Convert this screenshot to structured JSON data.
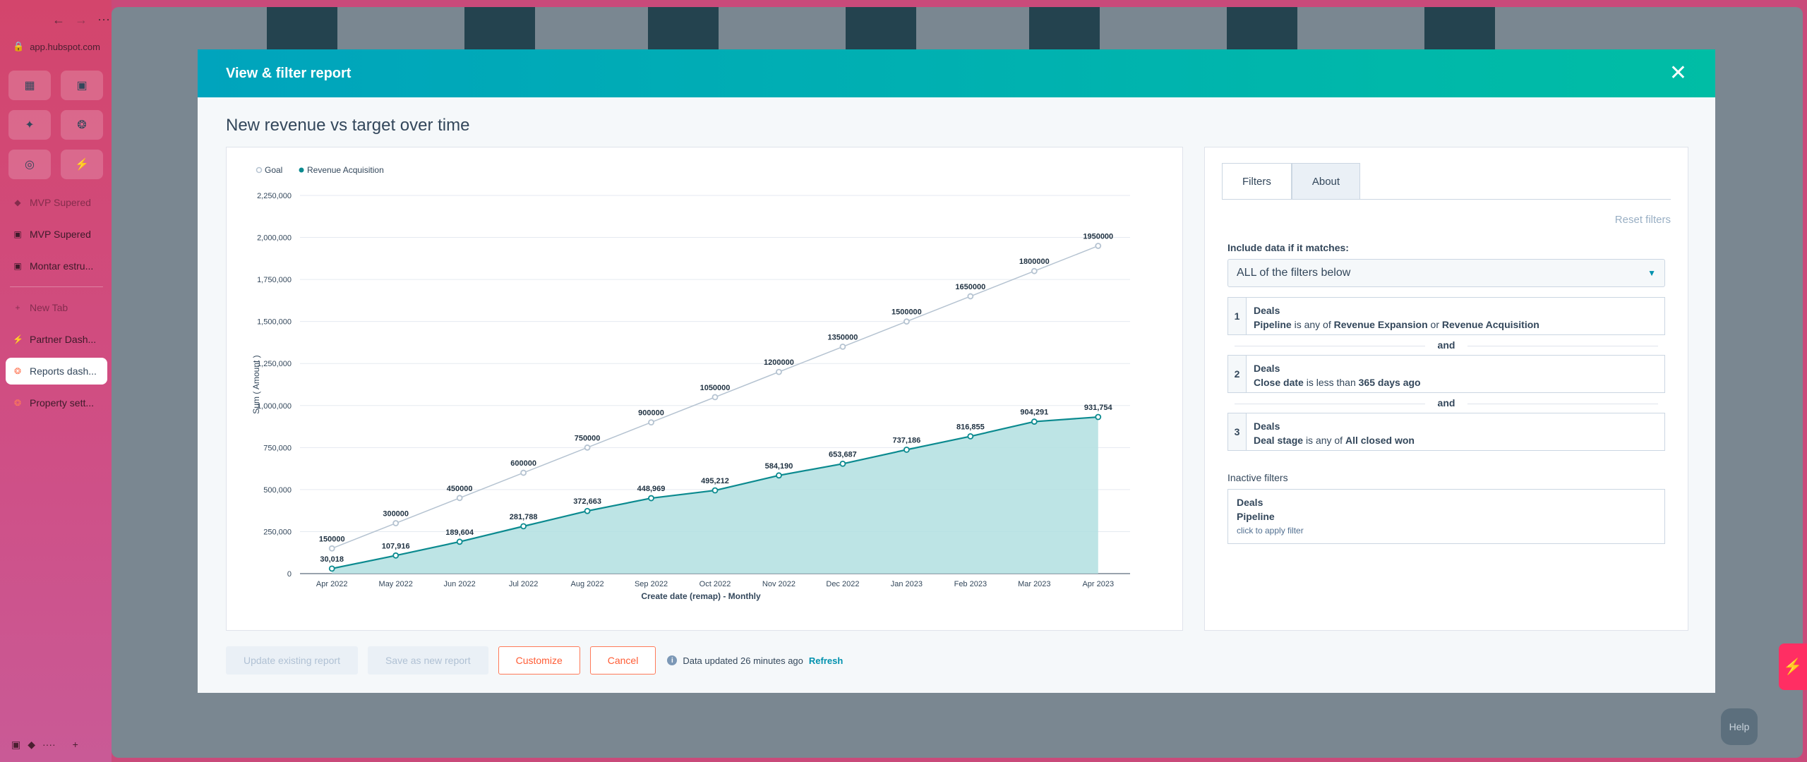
{
  "browser": {
    "url": "app.hubspot.com",
    "pinned": [
      "calendar-icon",
      "clipboard-icon",
      "slack-icon",
      "hubspot-icon",
      "target-icon",
      "bolt-icon"
    ],
    "tabs": [
      {
        "label": "MVP Supered",
        "style": "faded",
        "icon": "◆"
      },
      {
        "label": "MVP Supered",
        "style": "normal",
        "icon": "▣"
      },
      {
        "label": "Montar estru...",
        "style": "normal",
        "icon": "▣"
      },
      {
        "label": "New Tab",
        "style": "faded",
        "icon": "+"
      },
      {
        "label": "Partner Dash...",
        "style": "normal",
        "icon": "⚡"
      },
      {
        "label": "Reports dash...",
        "style": "active",
        "icon": "❂"
      },
      {
        "label": "Property sett...",
        "style": "normal",
        "icon": "❂"
      }
    ]
  },
  "modal": {
    "title": "View & filter report",
    "report_title": "New revenue vs target over time"
  },
  "chart_data": {
    "type": "line",
    "title": "New revenue vs target over time",
    "xlabel": "Create date (remap) - Monthly",
    "ylabel": "Sum ( Amount )",
    "ylim": [
      0,
      2250000
    ],
    "yticks": [
      0,
      250000,
      500000,
      750000,
      1000000,
      1250000,
      1500000,
      1750000,
      2000000,
      2250000
    ],
    "ytick_labels": [
      "0",
      "250,000",
      "500,000",
      "750,000",
      "1,000,000",
      "1,250,000",
      "1,500,000",
      "1,750,000",
      "2,000,000",
      "2,250,000"
    ],
    "categories": [
      "Apr 2022",
      "May 2022",
      "Jun 2022",
      "Jul 2022",
      "Aug 2022",
      "Sep 2022",
      "Oct 2022",
      "Nov 2022",
      "Dec 2022",
      "Jan 2023",
      "Feb 2023",
      "Mar 2023",
      "Apr 2023"
    ],
    "legend": [
      "Goal",
      "Revenue Acquisition"
    ],
    "series": [
      {
        "name": "Goal",
        "color": "#b5c3d1",
        "values": [
          150000,
          300000,
          450000,
          600000,
          750000,
          900000,
          1050000,
          1200000,
          1350000,
          1500000,
          1650000,
          1800000,
          1950000
        ],
        "labels": [
          "150000",
          "300000",
          "450000",
          "600000",
          "750000",
          "900000",
          "1050000",
          "1200000",
          "1350000",
          "1500000",
          "1650000",
          "1800000",
          "1950000"
        ]
      },
      {
        "name": "Revenue Acquisition",
        "color": "#0b8a8f",
        "area": "#b2dfe0",
        "values": [
          30018,
          107916,
          189604,
          281788,
          372663,
          448969,
          495212,
          584190,
          653687,
          737186,
          816855,
          904291,
          931754
        ],
        "labels": [
          "30,018",
          "107,916",
          "189,604",
          "281,788",
          "372,663",
          "448,969",
          "495,212",
          "584,190",
          "653,687",
          "737,186",
          "816,855",
          "904,291",
          "931,754"
        ]
      }
    ]
  },
  "filters": {
    "tabs": [
      "Filters",
      "About"
    ],
    "reset": "Reset filters",
    "include_label": "Include data if it matches:",
    "match_mode": "ALL of the filters below",
    "and_label": "and",
    "items": [
      {
        "num": "1",
        "object": "Deals",
        "prop": "Pipeline",
        "op": "is any of",
        "val1": "Revenue Expansion",
        "join": "or",
        "val2": "Revenue Acquisition"
      },
      {
        "num": "2",
        "object": "Deals",
        "prop": "Close date",
        "op": "is less than",
        "val1": "365 days ago"
      },
      {
        "num": "3",
        "object": "Deals",
        "prop": "Deal stage",
        "op": "is any of",
        "val1": "All closed won"
      }
    ],
    "inactive_label": "Inactive filters",
    "inactive": {
      "object": "Deals",
      "prop": "Pipeline",
      "hint": "click to apply filter"
    }
  },
  "footer": {
    "update_btn": "Update existing report",
    "save_btn": "Save as new report",
    "customize_btn": "Customize",
    "cancel_btn": "Cancel",
    "data_updated": "Data updated 26 minutes ago",
    "refresh": "Refresh"
  },
  "help": "Help"
}
